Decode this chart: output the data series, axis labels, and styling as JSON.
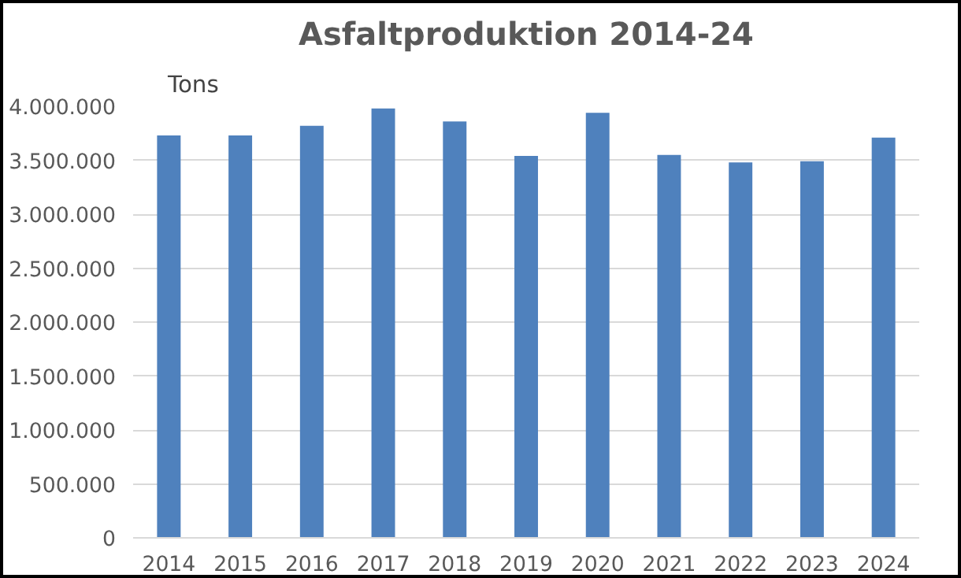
{
  "chart_data": {
    "type": "bar",
    "title": "Asfaltproduktion 2014-24",
    "ylabel": "Tons",
    "categories": [
      "2014",
      "2015",
      "2016",
      "2017",
      "2018",
      "2019",
      "2020",
      "2021",
      "2022",
      "2023",
      "2024"
    ],
    "values": [
      3730000,
      3730000,
      3820000,
      3980000,
      3860000,
      3540000,
      3940000,
      3550000,
      3480000,
      3490000,
      3710000
    ],
    "color": "#4f81bd",
    "ylim": [
      0,
      4000000
    ],
    "yticks": [
      {
        "value": 0,
        "label": "0"
      },
      {
        "value": 500000,
        "label": "500.000"
      },
      {
        "value": 1000000,
        "label": "1.000.000"
      },
      {
        "value": 1500000,
        "label": "1.500.000"
      },
      {
        "value": 2000000,
        "label": "2.000.000"
      },
      {
        "value": 2500000,
        "label": "2.500.000"
      },
      {
        "value": 3000000,
        "label": "3.000.000"
      },
      {
        "value": 3500000,
        "label": "3.500.000"
      },
      {
        "value": 4000000,
        "label": "4.000.000"
      }
    ],
    "grid": "y"
  }
}
